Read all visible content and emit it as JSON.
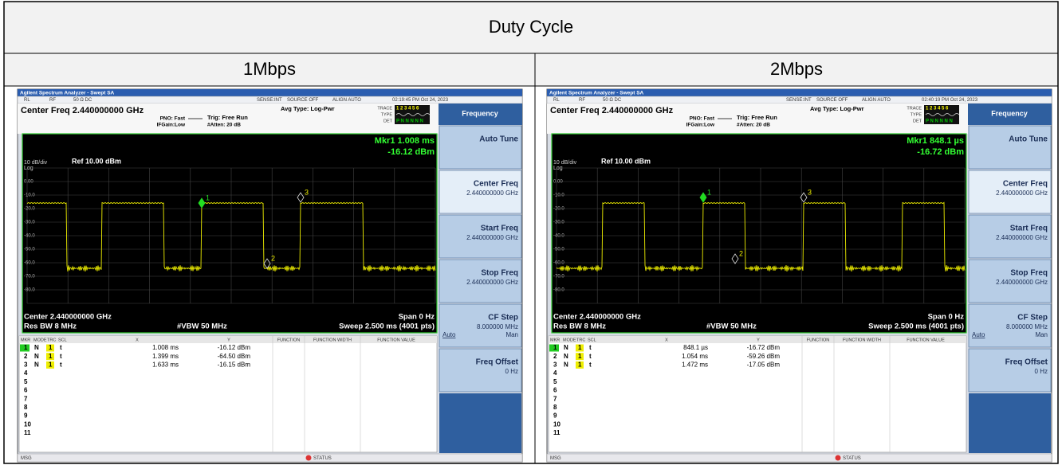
{
  "table": {
    "title": "Duty Cycle",
    "columns": [
      "1Mbps",
      "2Mbps"
    ]
  },
  "screens": [
    {
      "window_title": "Agilent Spectrum Analyzer - Swept SA",
      "status": [
        "RL",
        "RF",
        "50 Ω  DC",
        "SENSE:INT",
        "SOURCE OFF",
        "ALIGN AUTO"
      ],
      "timestamp": "02:19:45 PM Oct 24, 2023",
      "center_freq": "Center Freq 2.440000000 GHz",
      "pno": "PNO: Fast",
      "ifgain": "IFGain:Low",
      "trig": "Trig: Free Run",
      "atten": "#Atten: 20 dB",
      "avg_type": "Avg Type: Log-Pwr",
      "trace_labels": [
        "TRACE",
        "TYPE",
        "DET"
      ],
      "trace_nums": "1 2 3 4 5 6",
      "trace_det": "P N N N N N",
      "marker_readout": [
        "Mkr1 1.008 ms",
        "-16.12 dBm"
      ],
      "scale": "10 dB/div",
      "ref": "Ref 10.00 dBm",
      "log": "Log",
      "y_labels": [
        "0.00",
        "-10.0",
        "-20.0",
        "-30.0",
        "-40.0",
        "-50.0",
        "-60.0",
        "-70.0",
        "-80.0"
      ],
      "bottom": {
        "center": "Center 2.440000000 GHz",
        "span": "Span 0 Hz",
        "rbw": "Res BW 8 MHz",
        "vbw": "#VBW 50 MHz",
        "sweep": "Sweep  2.500 ms (4001 pts)"
      },
      "softkey_header": "Frequency",
      "softkeys": [
        {
          "label": "Auto Tune"
        },
        {
          "label": "Center Freq",
          "value": "2.440000000 GHz"
        },
        {
          "label": "Start Freq",
          "value": "2.440000000 GHz"
        },
        {
          "label": "Stop Freq",
          "value": "2.440000000 GHz"
        },
        {
          "label": "CF Step",
          "value": "8.000000 MHz",
          "auto": "Auto",
          "man": "Man"
        },
        {
          "label": "Freq Offset",
          "value": "0 Hz"
        }
      ],
      "marker_table": {
        "headers": [
          "MKR",
          "MODE",
          "TRC",
          "SCL",
          "X",
          "Y",
          "FUNCTION",
          "FUNCTION WIDTH",
          "FUNCTION VALUE"
        ],
        "rows": [
          {
            "mkr": "1",
            "mode": "N",
            "trc": "1",
            "scl": "t",
            "x": "1.008 ms",
            "y": "-16.12 dBm"
          },
          {
            "mkr": "2",
            "mode": "N",
            "trc": "1",
            "scl": "t",
            "x": "1.399 ms",
            "y": "-64.50 dBm"
          },
          {
            "mkr": "3",
            "mode": "N",
            "trc": "1",
            "scl": "t",
            "x": "1.633 ms",
            "y": "-16.15 dBm"
          }
        ],
        "empty_rows": [
          "4",
          "5",
          "6",
          "7",
          "8",
          "9",
          "10",
          "11"
        ]
      },
      "msg": "MSG",
      "status_label": "STATUS"
    },
    {
      "window_title": "Agilent Spectrum Analyzer - Swept SA",
      "status": [
        "RL",
        "RF",
        "50 Ω  DC",
        "SENSE:INT",
        "SOURCE OFF",
        "ALIGN AUTO"
      ],
      "timestamp": "02:40:19 PM Oct 24, 2023",
      "center_freq": "Center Freq 2.440000000 GHz",
      "pno": "PNO: Fast",
      "ifgain": "IFGain:Low",
      "trig": "Trig: Free Run",
      "atten": "#Atten: 20 dB",
      "avg_type": "Avg Type: Log-Pwr",
      "trace_labels": [
        "TRACE",
        "TYPE",
        "DET"
      ],
      "trace_nums": "1 2 3 4 5 6",
      "trace_det": "P N N N N N",
      "marker_readout": [
        "Mkr1 848.1 µs",
        "-16.72 dBm"
      ],
      "scale": "10 dB/div",
      "ref": "Ref 10.00 dBm",
      "log": "Log",
      "y_labels": [
        "0.00",
        "-10.0",
        "-20.0",
        "-30.0",
        "-40.0",
        "-50.0",
        "-60.0",
        "-70.0",
        "-80.0"
      ],
      "bottom": {
        "center": "Center 2.440000000 GHz",
        "span": "Span 0 Hz",
        "rbw": "Res BW 8 MHz",
        "vbw": "#VBW 50 MHz",
        "sweep": "Sweep  2.500 ms (4001 pts)"
      },
      "softkey_header": "Frequency",
      "softkeys": [
        {
          "label": "Auto Tune"
        },
        {
          "label": "Center Freq",
          "value": "2.440000000 GHz"
        },
        {
          "label": "Start Freq",
          "value": "2.440000000 GHz"
        },
        {
          "label": "Stop Freq",
          "value": "2.440000000 GHz"
        },
        {
          "label": "CF Step",
          "value": "8.000000 MHz",
          "auto": "Auto",
          "man": "Man"
        },
        {
          "label": "Freq Offset",
          "value": "0 Hz"
        }
      ],
      "marker_table": {
        "headers": [
          "MKR",
          "MODE",
          "TRC",
          "SCL",
          "X",
          "Y",
          "FUNCTION",
          "FUNCTION WIDTH",
          "FUNCTION VALUE"
        ],
        "rows": [
          {
            "mkr": "1",
            "mode": "N",
            "trc": "1",
            "scl": "t",
            "x": "848.1 µs",
            "y": "-16.72 dBm"
          },
          {
            "mkr": "2",
            "mode": "N",
            "trc": "1",
            "scl": "t",
            "x": "1.054 ms",
            "y": "-59.26 dBm"
          },
          {
            "mkr": "3",
            "mode": "N",
            "trc": "1",
            "scl": "t",
            "x": "1.472 ms",
            "y": "-17.05 dBm"
          }
        ],
        "empty_rows": [
          "4",
          "5",
          "6",
          "7",
          "8",
          "9",
          "10",
          "11"
        ]
      },
      "msg": "MSG",
      "status_label": "STATUS"
    }
  ]
}
